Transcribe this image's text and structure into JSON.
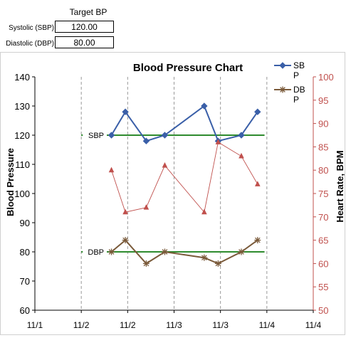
{
  "target_table": {
    "title": "Target BP",
    "rows": [
      {
        "label": "Systolic (SBP)",
        "value": "120.00"
      },
      {
        "label": "Diastolic (DBP)",
        "value": "80.00"
      }
    ]
  },
  "chart_data": {
    "type": "line",
    "title": "Blood Pressure Chart",
    "ylabel": "Blood Pressure",
    "y2label": "Heart Rate, BPM",
    "ylim": [
      60,
      140
    ],
    "yticks": [
      60,
      70,
      80,
      90,
      100,
      110,
      120,
      130,
      140
    ],
    "y2lim": [
      50,
      100
    ],
    "y2ticks": [
      50,
      55,
      60,
      65,
      70,
      75,
      80,
      85,
      90,
      95,
      100
    ],
    "xlim": [
      0,
      6
    ],
    "xticks": [
      0,
      1,
      2,
      3,
      4,
      5,
      6
    ],
    "xtick_labels": [
      "11/1",
      "11/2",
      "11/2",
      "11/3",
      "11/3",
      "11/4",
      "11/4"
    ],
    "grid": "vertical dashed",
    "legend": "top-right",
    "series": [
      {
        "name": "SB P",
        "axis": "left",
        "color": "#3a5fa8",
        "marker": "diamond",
        "x": [
          1.65,
          1.95,
          2.4,
          2.8,
          3.65,
          3.95,
          4.45,
          4.8
        ],
        "y": [
          120,
          128,
          118,
          120,
          130,
          118,
          120,
          128
        ]
      },
      {
        "name": "DB P",
        "axis": "left",
        "color": "#7a5a3a",
        "marker": "star",
        "x": [
          1.65,
          1.95,
          2.4,
          2.8,
          3.65,
          3.95,
          4.45,
          4.8
        ],
        "y": [
          80,
          84,
          76,
          80,
          78,
          76,
          80,
          84
        ]
      },
      {
        "name": "",
        "axis": "right",
        "color": "#c0504d",
        "marker": "triangle",
        "x": [
          1.65,
          1.95,
          2.4,
          2.8,
          3.65,
          3.95,
          4.45,
          4.8
        ],
        "y": [
          80,
          71,
          72,
          81,
          71,
          86,
          83,
          77
        ]
      }
    ],
    "targets": [
      {
        "label": "SBP",
        "value": 120,
        "x_from": 1.55,
        "x_to": 4.95,
        "color": "#2e8b2e"
      },
      {
        "label": "DBP",
        "value": 80,
        "x_from": 1.55,
        "x_to": 4.95,
        "color": "#2e8b2e"
      }
    ]
  }
}
